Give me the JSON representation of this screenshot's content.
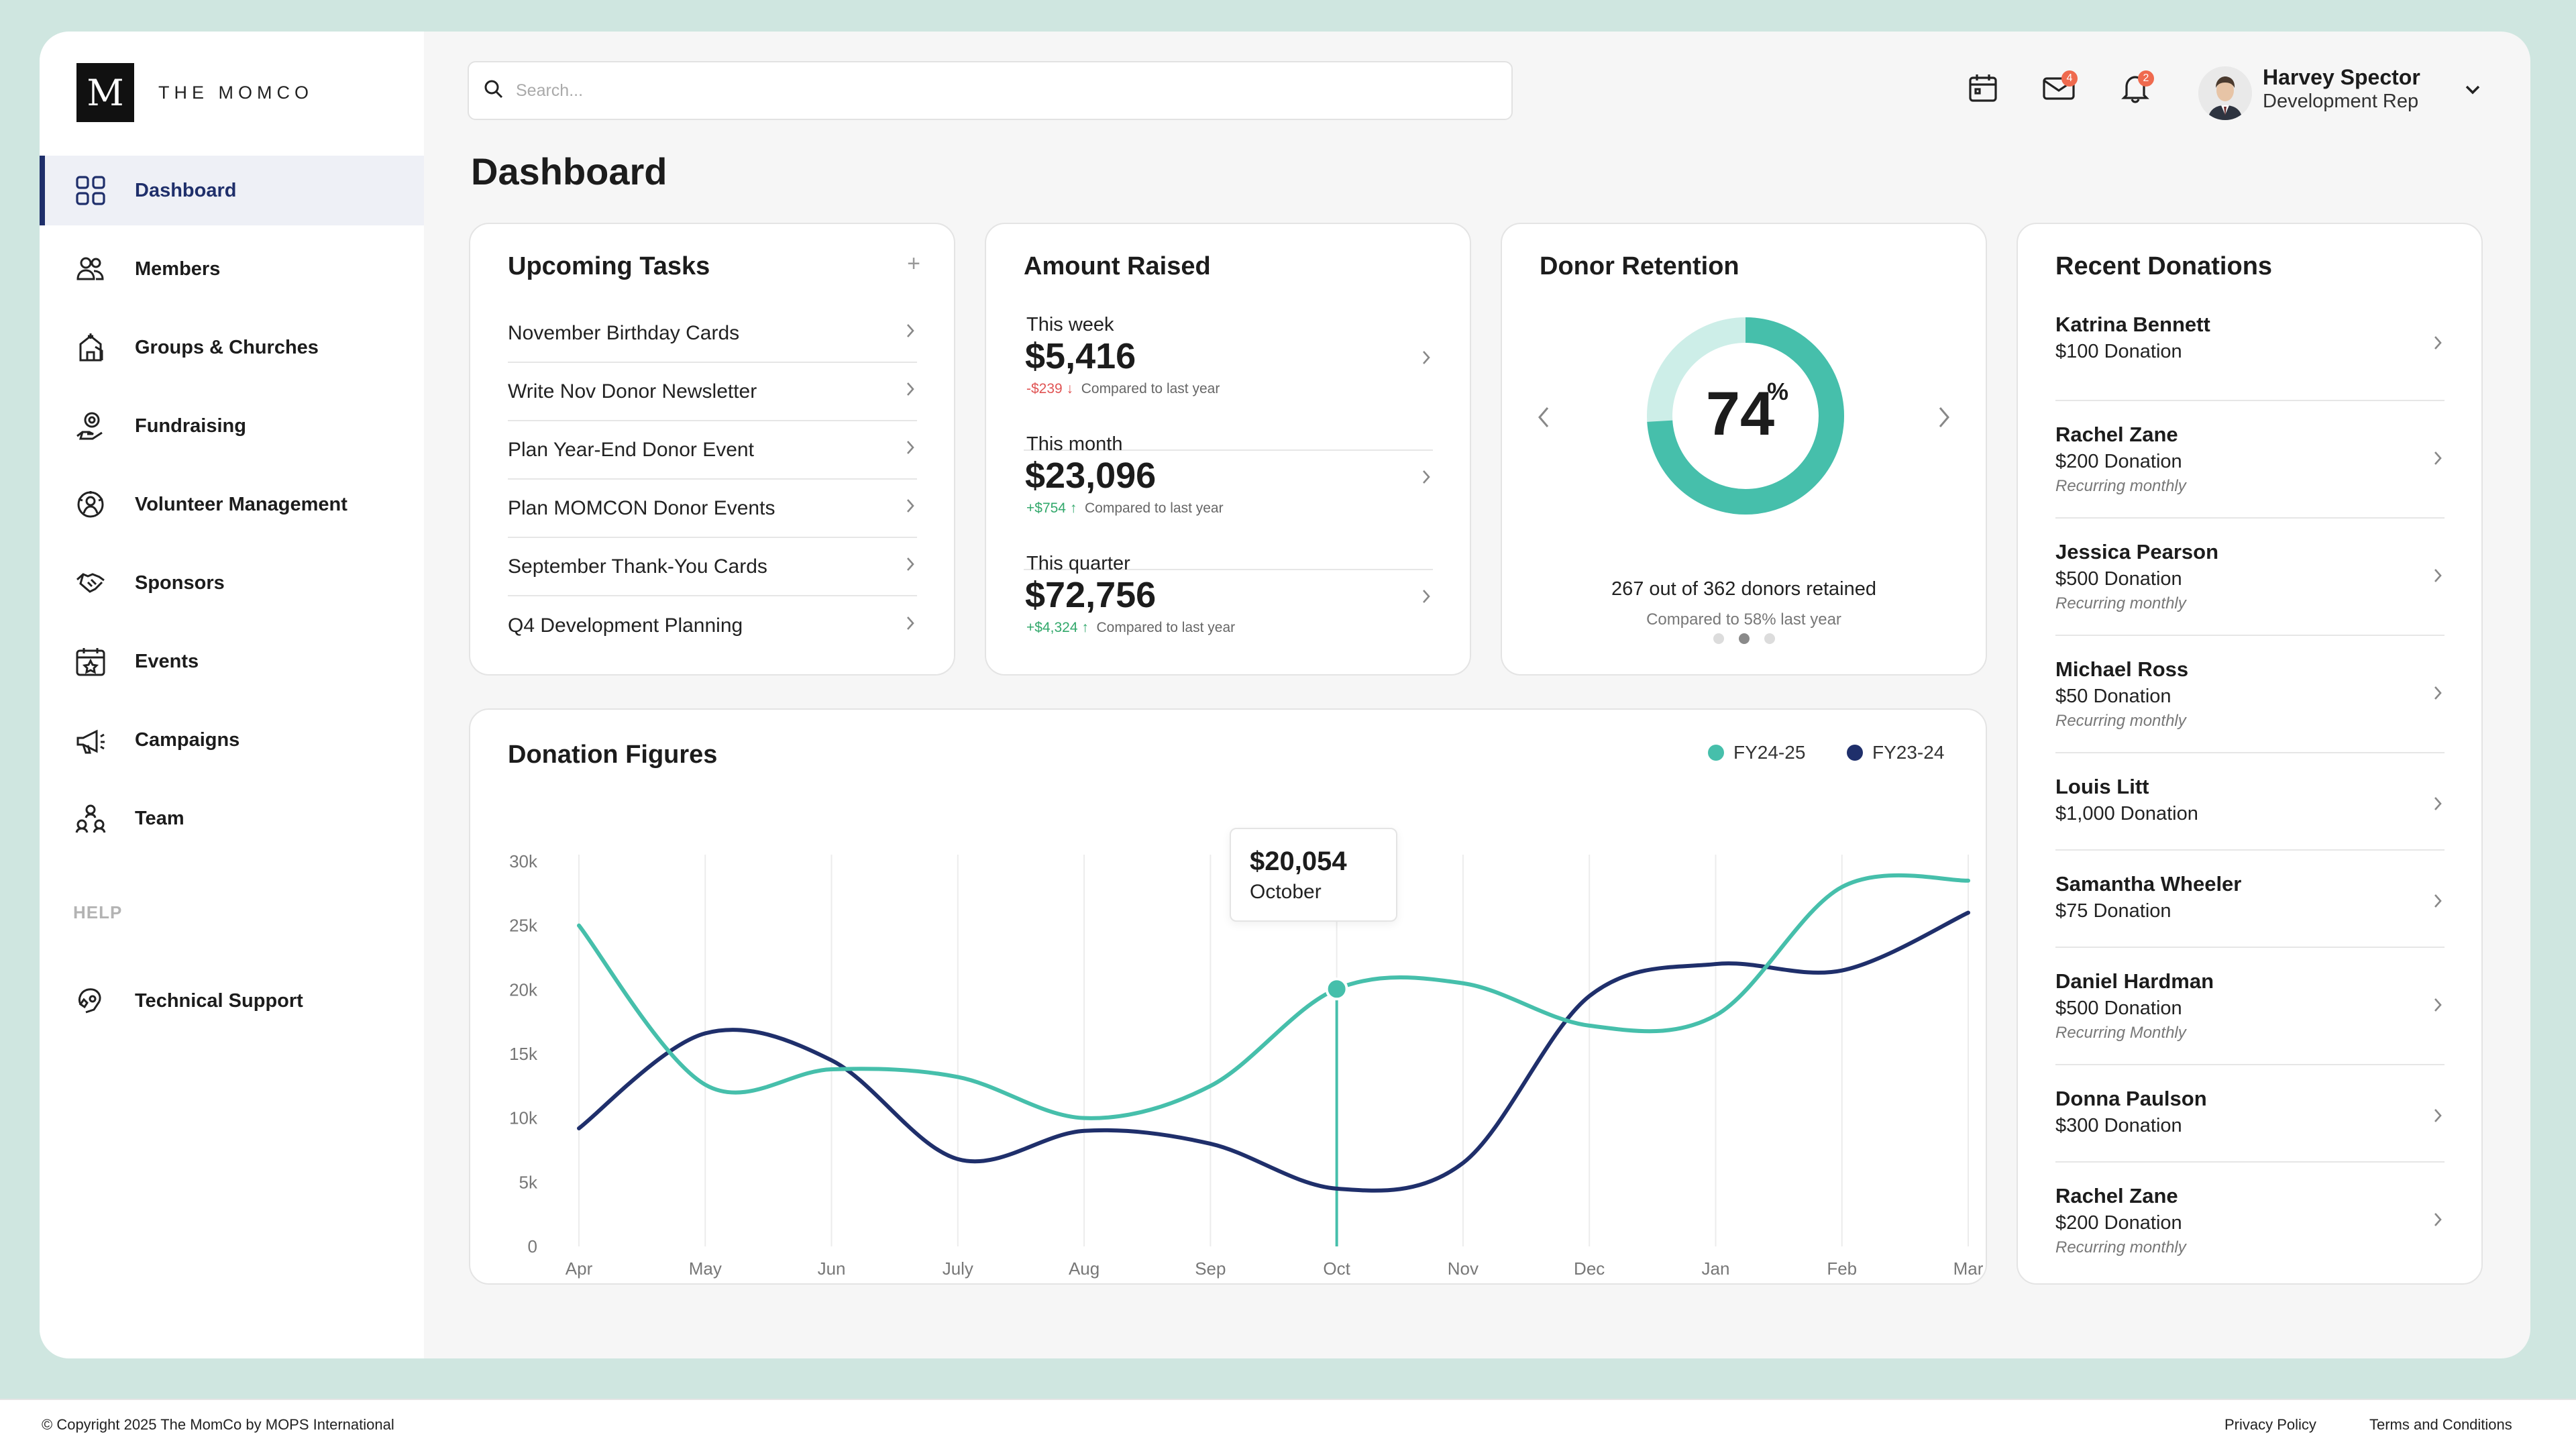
{
  "brand": {
    "mark": "M",
    "name": "THE MOMCO"
  },
  "nav": {
    "items": [
      {
        "label": "Dashboard",
        "icon": "dashboard-grid-icon",
        "active": true
      },
      {
        "label": "Members",
        "icon": "members-icon"
      },
      {
        "label": "Groups & Churches",
        "icon": "church-icon"
      },
      {
        "label": "Fundraising",
        "icon": "fundraising-icon"
      },
      {
        "label": "Volunteer Management",
        "icon": "volunteer-icon"
      },
      {
        "label": "Sponsors",
        "icon": "handshake-icon"
      },
      {
        "label": "Events",
        "icon": "calendar-star-icon"
      },
      {
        "label": "Campaigns",
        "icon": "megaphone-icon"
      },
      {
        "label": "Team",
        "icon": "team-icon"
      }
    ],
    "help_heading": "HELP",
    "support": {
      "label": "Technical Support",
      "icon": "support-icon"
    }
  },
  "search": {
    "placeholder": "Search..."
  },
  "header": {
    "mail_badge": "4",
    "bell_badge": "2",
    "user": {
      "name": "Harvey Spector",
      "role": "Development Rep"
    }
  },
  "page": {
    "title": "Dashboard"
  },
  "tasks": {
    "title": "Upcoming Tasks",
    "add": "+",
    "items": [
      "November Birthday Cards",
      "Write Nov Donor Newsletter",
      "Plan Year-End Donor Event",
      "Plan MOMCON Donor Events",
      "September Thank-You Cards",
      "Q4 Development Planning"
    ]
  },
  "amount": {
    "title": "Amount Raised",
    "rows": [
      {
        "label": "This week",
        "value": "$5,416",
        "delta": "-$239 ↓",
        "dir": "neg",
        "note": "Compared to last year"
      },
      {
        "label": "This month",
        "value": "$23,096",
        "delta": "+$754 ↑",
        "dir": "pos",
        "note": "Compared to last year"
      },
      {
        "label": "This quarter",
        "value": "$72,756",
        "delta": "+$4,324 ↑",
        "dir": "pos",
        "note": "Compared to last year"
      }
    ]
  },
  "retention": {
    "title": "Donor Retention",
    "percent_value": 74,
    "percent": "74",
    "percent_sign": "%",
    "stat": "267 out of 362 donors retained",
    "compare": "Compared to 58% last year",
    "slide_count": 3,
    "active_slide": 1
  },
  "recent": {
    "title": "Recent Donations",
    "items": [
      {
        "name": "Katrina Bennett",
        "amount": "$100 Donation",
        "recurring": ""
      },
      {
        "name": "Rachel Zane",
        "amount": "$200 Donation",
        "recurring": "Recurring monthly"
      },
      {
        "name": "Jessica Pearson",
        "amount": "$500 Donation",
        "recurring": "Recurring monthly"
      },
      {
        "name": "Michael Ross",
        "amount": "$50 Donation",
        "recurring": "Recurring monthly"
      },
      {
        "name": "Louis Litt",
        "amount": "$1,000 Donation",
        "recurring": ""
      },
      {
        "name": "Samantha Wheeler",
        "amount": "$75 Donation",
        "recurring": ""
      },
      {
        "name": "Daniel Hardman",
        "amount": "$500 Donation",
        "recurring": "Recurring Monthly"
      },
      {
        "name": "Donna Paulson",
        "amount": "$300 Donation",
        "recurring": ""
      },
      {
        "name": "Rachel Zane",
        "amount": "$200 Donation",
        "recurring": "Recurring monthly"
      }
    ]
  },
  "colors": {
    "teal": "#46bfab",
    "navy": "#1f2f6b",
    "teal_light": "#cdeee8"
  },
  "chart_data": {
    "type": "line",
    "title": "Donation Figures",
    "categories": [
      "Apr",
      "May",
      "Jun",
      "July",
      "Aug",
      "Sep",
      "Oct",
      "Nov",
      "Dec",
      "Jan",
      "Feb",
      "Mar"
    ],
    "yticks": [
      "0",
      "5k",
      "10k",
      "15k",
      "20k",
      "25k",
      "30k"
    ],
    "ylim": [
      0,
      30000
    ],
    "grid": "vertical",
    "legend_position": "top-right",
    "series": [
      {
        "name": "FY24-25",
        "color": "#46bfab",
        "values": [
          25000,
          12600,
          13800,
          13200,
          10000,
          12500,
          20054,
          20500,
          17200,
          18000,
          28000,
          28500
        ]
      },
      {
        "name": "FY23-24",
        "color": "#1f2f6b",
        "values": [
          9200,
          16600,
          14500,
          6800,
          9000,
          8000,
          4500,
          6500,
          19500,
          22000,
          21500,
          26000
        ]
      }
    ],
    "tooltip": {
      "value": "$20,054",
      "label": "October",
      "series": 0,
      "index": 6
    }
  },
  "footer": {
    "copyright": "© Copyright 2025 The MomCo by MOPS International",
    "privacy": "Privacy Policy",
    "terms": "Terms and Conditions"
  }
}
